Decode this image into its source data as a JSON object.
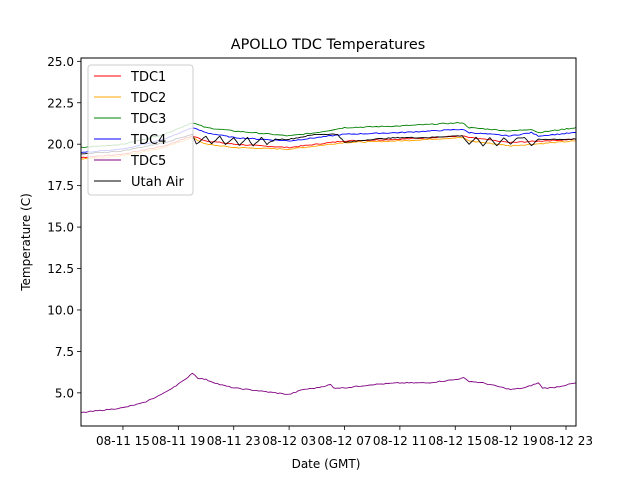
{
  "chart_data": {
    "type": "line",
    "title": "APOLLO TDC Temperatures",
    "xlabel": "Date (GMT)",
    "ylabel": "Temperature (C)",
    "xlim_hours_since_08-11_00": [
      11.97,
      47.72
    ],
    "ylim": [
      3.0,
      25.2
    ],
    "grid": false,
    "legend_position": "top-left",
    "x_ticks": [
      {
        "t": 15,
        "label": "08-11 15"
      },
      {
        "t": 19,
        "label": "08-11 19"
      },
      {
        "t": 23,
        "label": "08-11 23"
      },
      {
        "t": 27,
        "label": "08-12 03"
      },
      {
        "t": 31,
        "label": "08-12 07"
      },
      {
        "t": 35,
        "label": "08-12 11"
      },
      {
        "t": 39,
        "label": "08-12 15"
      },
      {
        "t": 43,
        "label": "08-12 19"
      },
      {
        "t": 47,
        "label": "08-12 23"
      }
    ],
    "y_ticks": [
      "5.0",
      "7.5",
      "10.0",
      "12.5",
      "15.0",
      "17.5",
      "20.0",
      "22.5",
      "25.0"
    ],
    "series": [
      {
        "name": "TDC1",
        "color": "#ff0000",
        "points": [
          [
            11.97,
            19.2
          ],
          [
            15,
            19.4
          ],
          [
            18,
            19.9
          ],
          [
            20,
            20.5
          ],
          [
            21,
            20.2
          ],
          [
            23,
            20.0
          ],
          [
            27,
            19.8
          ],
          [
            29,
            20.0
          ],
          [
            31,
            20.2
          ],
          [
            35,
            20.3
          ],
          [
            39.5,
            20.5
          ],
          [
            40,
            20.4
          ],
          [
            43,
            20.1
          ],
          [
            47.72,
            20.3
          ]
        ]
      },
      {
        "name": "TDC2",
        "color": "#ffa500",
        "points": [
          [
            11.97,
            19.1
          ],
          [
            15,
            19.3
          ],
          [
            18,
            19.8
          ],
          [
            20,
            20.4
          ],
          [
            21,
            20.0
          ],
          [
            23,
            19.8
          ],
          [
            27,
            19.7
          ],
          [
            29,
            19.9
          ],
          [
            31,
            20.1
          ],
          [
            35,
            20.2
          ],
          [
            39.5,
            20.4
          ],
          [
            40,
            20.2
          ],
          [
            43,
            19.9
          ],
          [
            47.72,
            20.2
          ]
        ]
      },
      {
        "name": "TDC3",
        "color": "#008000",
        "points": [
          [
            11.97,
            19.8
          ],
          [
            15,
            20.0
          ],
          [
            18,
            20.6
          ],
          [
            20,
            21.3
          ],
          [
            21,
            21.0
          ],
          [
            23,
            20.8
          ],
          [
            27,
            20.5
          ],
          [
            29,
            20.7
          ],
          [
            31,
            21.0
          ],
          [
            35,
            21.1
          ],
          [
            39.5,
            21.3
          ],
          [
            40,
            21.0
          ],
          [
            43,
            20.8
          ],
          [
            44.5,
            20.9
          ],
          [
            45,
            20.7
          ],
          [
            47.72,
            21.0
          ]
        ]
      },
      {
        "name": "TDC4",
        "color": "#0000ff",
        "points": [
          [
            11.97,
            19.5
          ],
          [
            15,
            19.7
          ],
          [
            18,
            20.3
          ],
          [
            20,
            21.0
          ],
          [
            21,
            20.7
          ],
          [
            23,
            20.4
          ],
          [
            27,
            20.2
          ],
          [
            29,
            20.4
          ],
          [
            31,
            20.6
          ],
          [
            35,
            20.7
          ],
          [
            39.5,
            20.9
          ],
          [
            40,
            20.7
          ],
          [
            43,
            20.5
          ],
          [
            44.5,
            20.7
          ],
          [
            45,
            20.5
          ],
          [
            47.72,
            20.7
          ]
        ]
      },
      {
        "name": "TDC5",
        "color": "#800080",
        "points": [
          [
            11.97,
            3.8
          ],
          [
            13,
            3.9
          ],
          [
            15,
            4.1
          ],
          [
            16.5,
            4.4
          ],
          [
            18,
            5.0
          ],
          [
            19.5,
            5.8
          ],
          [
            20,
            6.2
          ],
          [
            20.4,
            5.9
          ],
          [
            21,
            5.8
          ],
          [
            22,
            5.5
          ],
          [
            23,
            5.3
          ],
          [
            24,
            5.2
          ],
          [
            25,
            5.1
          ],
          [
            26,
            5.0
          ],
          [
            27,
            4.9
          ],
          [
            28,
            5.2
          ],
          [
            29,
            5.3
          ],
          [
            30,
            5.5
          ],
          [
            30.2,
            5.3
          ],
          [
            31,
            5.3
          ],
          [
            32,
            5.4
          ],
          [
            33,
            5.5
          ],
          [
            35,
            5.6
          ],
          [
            37,
            5.6
          ],
          [
            39,
            5.8
          ],
          [
            39.6,
            5.9
          ],
          [
            40,
            5.7
          ],
          [
            41,
            5.6
          ],
          [
            42,
            5.4
          ],
          [
            43,
            5.2
          ],
          [
            44,
            5.3
          ],
          [
            45,
            5.6
          ],
          [
            45.3,
            5.3
          ],
          [
            46,
            5.3
          ],
          [
            47.72,
            5.6
          ]
        ]
      },
      {
        "name": "Utah Air",
        "color": "#000000",
        "points": [
          [
            11.97,
            19.4
          ],
          [
            15,
            19.6
          ],
          [
            18,
            20.1
          ],
          [
            20,
            20.6
          ],
          [
            20.3,
            20.0
          ],
          [
            21,
            20.5
          ],
          [
            21.4,
            20.0
          ],
          [
            22,
            20.5
          ],
          [
            22.4,
            20.0
          ],
          [
            23,
            20.4
          ],
          [
            23.4,
            19.9
          ],
          [
            24,
            20.4
          ],
          [
            24.4,
            19.9
          ],
          [
            25,
            20.4
          ],
          [
            25.4,
            20.0
          ],
          [
            26,
            20.3
          ],
          [
            27,
            20.3
          ],
          [
            29,
            20.6
          ],
          [
            30.5,
            20.6
          ],
          [
            31,
            20.1
          ],
          [
            33,
            20.3
          ],
          [
            35,
            20.4
          ],
          [
            37,
            20.4
          ],
          [
            39,
            20.5
          ],
          [
            39.5,
            20.5
          ],
          [
            40,
            20.0
          ],
          [
            40.5,
            20.4
          ],
          [
            41,
            19.9
          ],
          [
            41.5,
            20.4
          ],
          [
            42,
            19.9
          ],
          [
            42.5,
            20.4
          ],
          [
            43,
            20.0
          ],
          [
            43.5,
            20.4
          ],
          [
            44,
            20.4
          ],
          [
            44.5,
            19.9
          ],
          [
            45,
            20.3
          ],
          [
            47.72,
            20.3
          ]
        ]
      }
    ]
  }
}
